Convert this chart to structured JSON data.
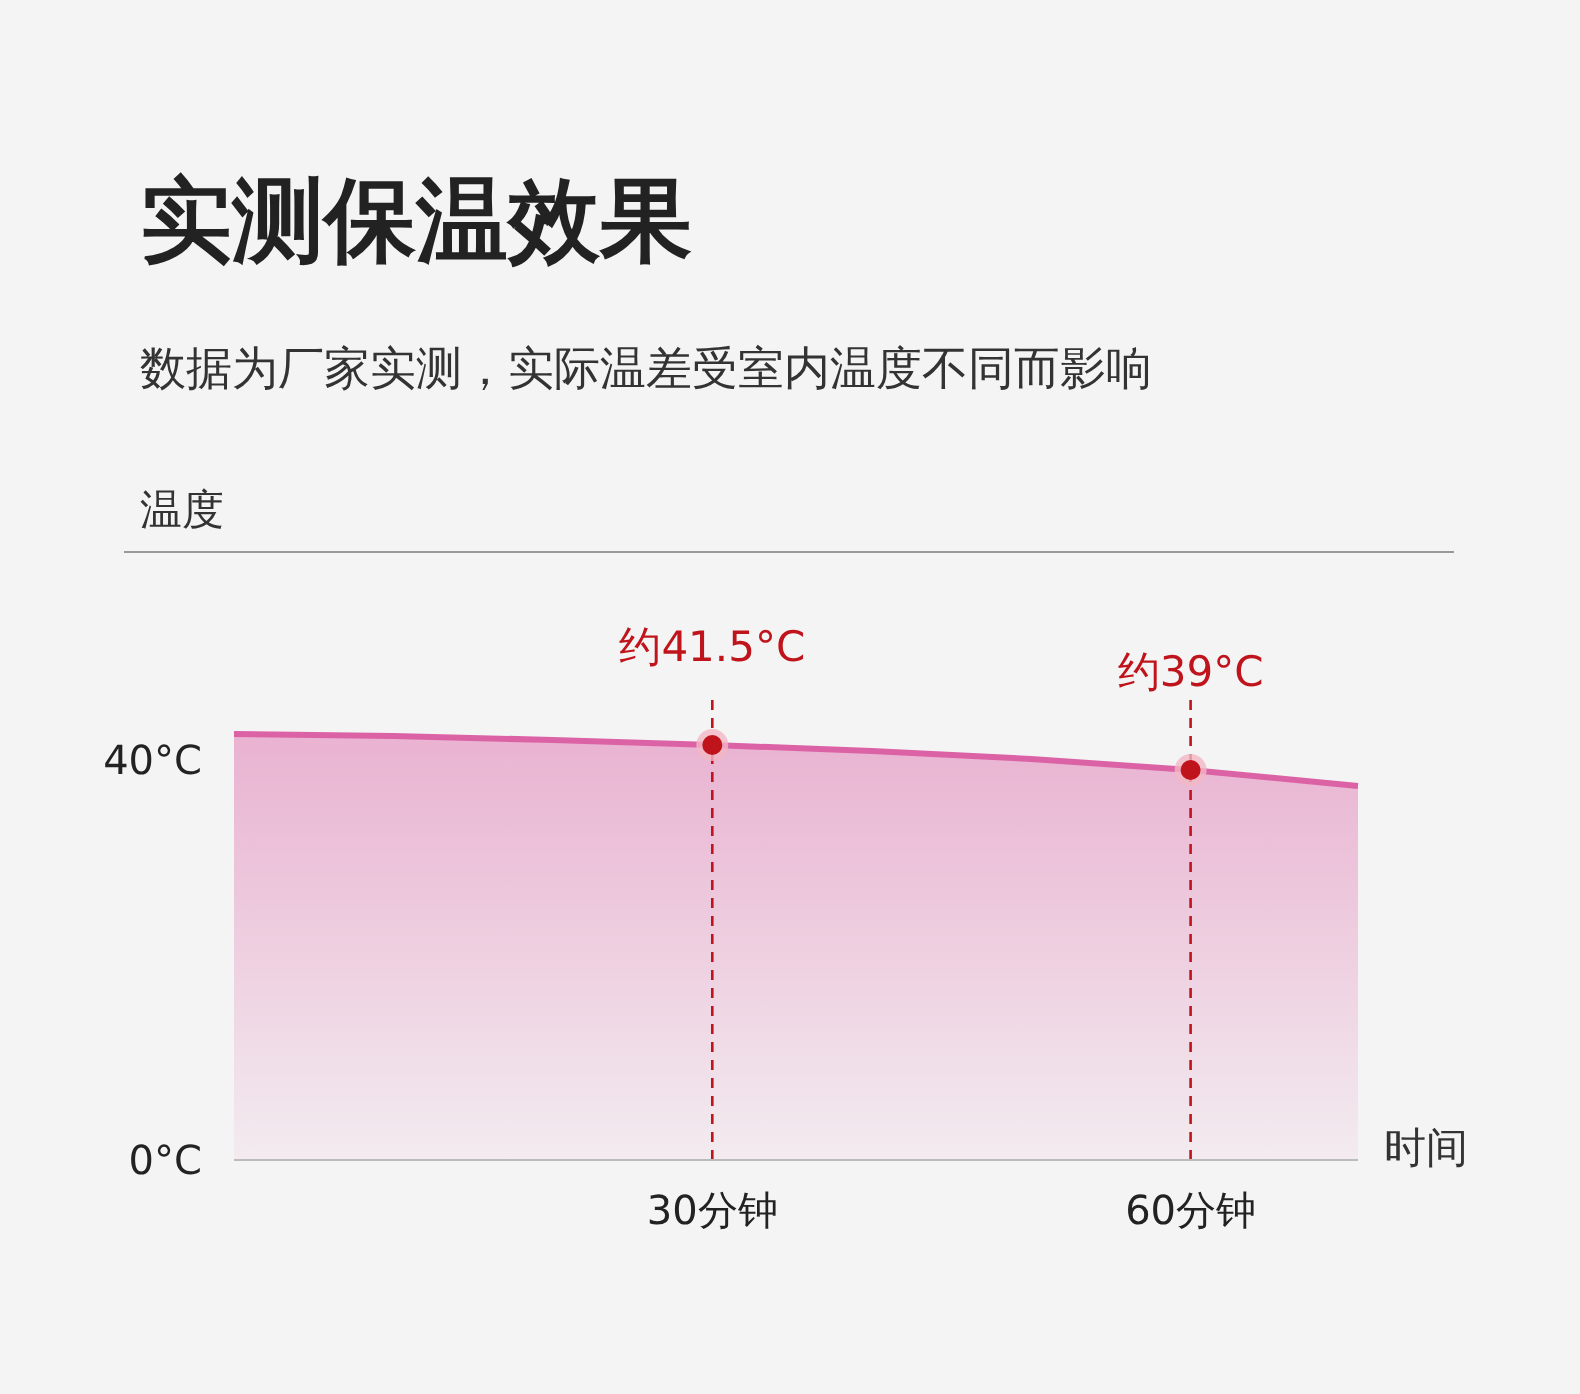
{
  "chart_data": {
    "type": "area",
    "title": "实测保温效果",
    "subtitle": "数据为厂家实测，实际温差受室内温度不同而影响",
    "ylabel": "温度",
    "xlabel": "时间",
    "xlim": [
      0,
      70.5
    ],
    "ylim": [
      0,
      60
    ],
    "xticks": [
      {
        "value": 30,
        "label": "30分钟"
      },
      {
        "value": 60,
        "label": "60分钟"
      }
    ],
    "yticks": [
      {
        "value": 0,
        "label": "0°C"
      },
      {
        "value": 40,
        "label": "40°C"
      }
    ],
    "grid": false,
    "series": [
      {
        "color": "#dc62a6",
        "x": [
          0,
          10,
          20,
          30,
          40,
          50,
          60,
          70.5
        ],
        "values": [
          42.6,
          42.4,
          42.0,
          41.5,
          40.9,
          40.1,
          39,
          37.4
        ]
      },
      {
        "type": "scatter",
        "marker": "circle",
        "color": "#c0141c",
        "x": [
          30,
          60
        ],
        "values": [
          41.5,
          39
        ],
        "value_labels": [
          "约41.5°C",
          "约39°C"
        ]
      }
    ],
    "ref_lines": [
      {
        "axis": "x",
        "value": 30,
        "color": "#c0141c",
        "line_style": "dashed"
      },
      {
        "axis": "x",
        "value": 60,
        "color": "#c0141c",
        "line_style": "dashed"
      }
    ]
  }
}
